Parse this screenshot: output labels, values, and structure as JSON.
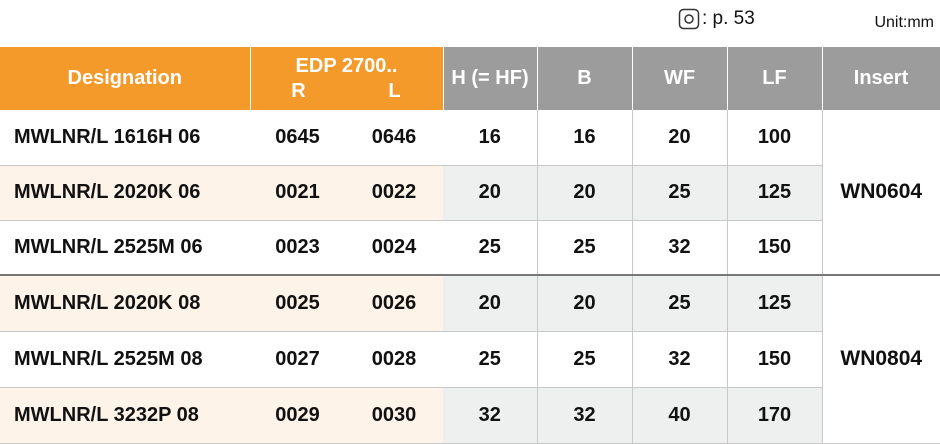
{
  "header": {
    "page_ref": ": p. 53",
    "unit": "Unit:mm"
  },
  "table": {
    "columns": [
      "Designation",
      "H (= HF)",
      "B",
      "WF",
      "LF",
      "Insert"
    ],
    "edp": {
      "title": "EDP 2700..",
      "sub": [
        "R",
        "L"
      ]
    },
    "groups": [
      {
        "insert": "WN0604",
        "rows": [
          [
            "MWLNR/L 1616H 06",
            "0645",
            "0646",
            "16",
            "16",
            "20",
            "100"
          ],
          [
            "MWLNR/L 2020K 06",
            "0021",
            "0022",
            "20",
            "20",
            "25",
            "125"
          ],
          [
            "MWLNR/L 2525M 06",
            "0023",
            "0024",
            "25",
            "25",
            "32",
            "150"
          ]
        ]
      },
      {
        "insert": "WN0804",
        "rows": [
          [
            "MWLNR/L 2020K 08",
            "0025",
            "0026",
            "20",
            "20",
            "25",
            "125"
          ],
          [
            "MWLNR/L 2525M 08",
            "0027",
            "0028",
            "25",
            "25",
            "32",
            "150"
          ],
          [
            "MWLNR/L 3232P 08",
            "0029",
            "0030",
            "32",
            "32",
            "40",
            "170"
          ]
        ]
      }
    ]
  }
}
